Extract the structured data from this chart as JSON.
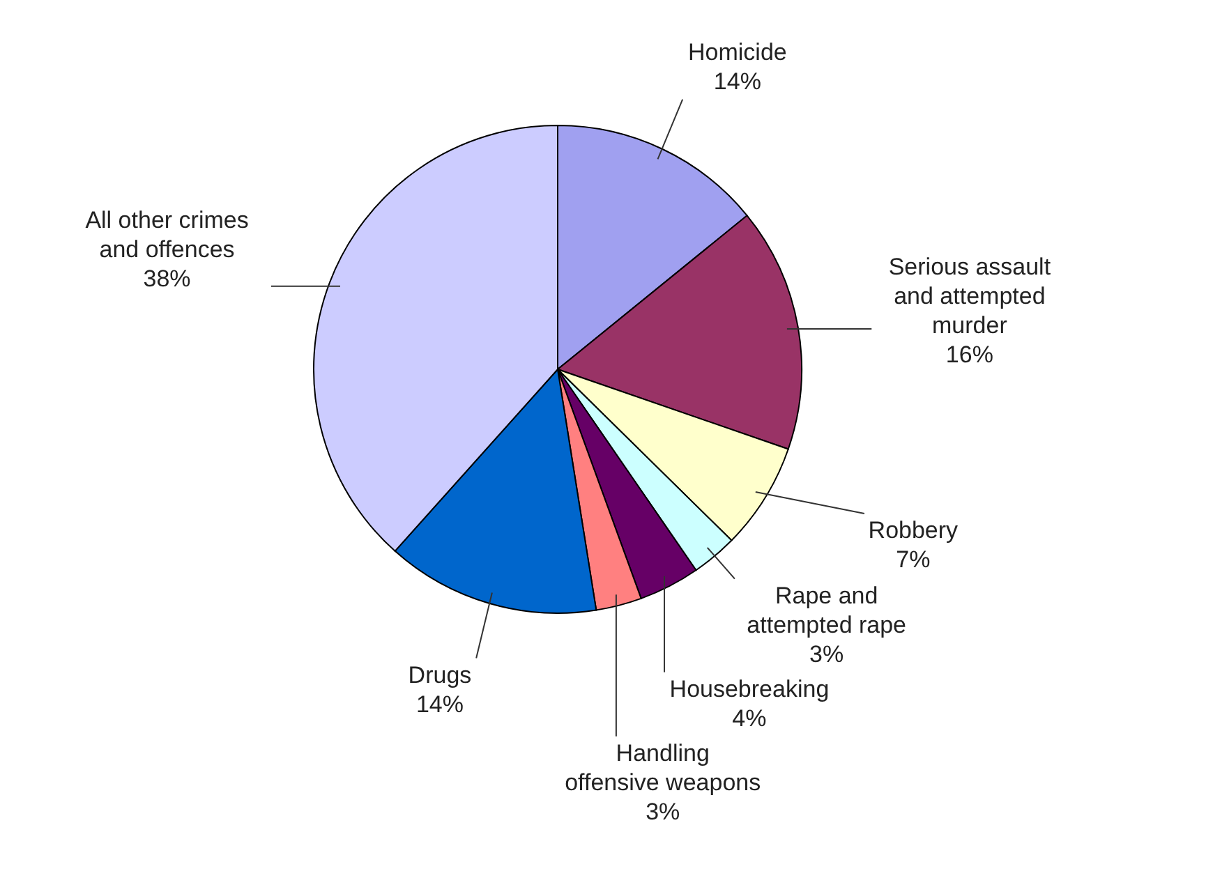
{
  "chart_data": {
    "type": "pie",
    "categories": [
      "Homicide",
      "Serious assault and attempted murder",
      "Robbery",
      "Rape and attempted rape",
      "Housebreaking",
      "Handling offensive weapons",
      "Drugs",
      "All other crimes and offences"
    ],
    "values": [
      14,
      16,
      7,
      3,
      4,
      3,
      14,
      38
    ],
    "value_labels": [
      "14%",
      "16%",
      "7%",
      "3%",
      "4%",
      "3%",
      "14%",
      "38%"
    ],
    "colors": [
      "#a0a0f0",
      "#993366",
      "#ffffcc",
      "#ccffff",
      "#660066",
      "#ff8080",
      "#0066cc",
      "#ccccff"
    ]
  }
}
